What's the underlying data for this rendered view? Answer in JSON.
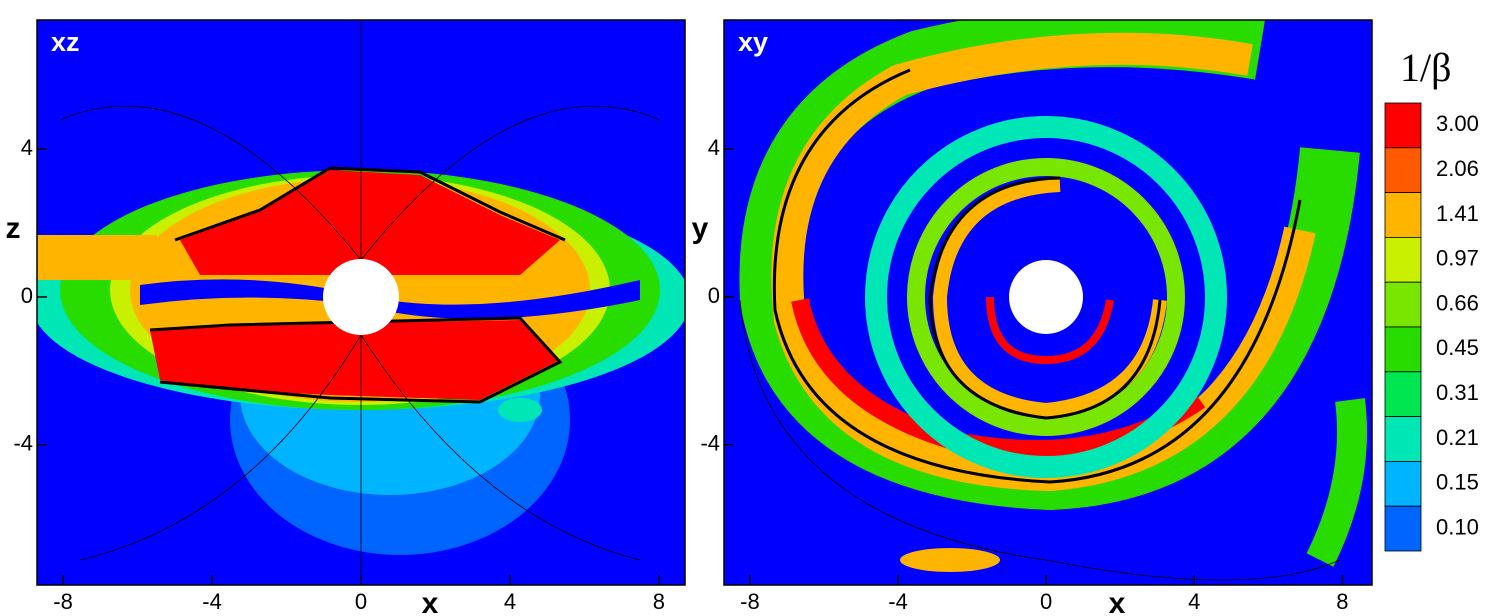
{
  "chart_data": [
    {
      "type": "contour",
      "panel_label": "xz",
      "xlabel": "x",
      "ylabel": "z",
      "xlim": [
        -8.7,
        8.7
      ],
      "ylim": [
        -7.8,
        7.5
      ],
      "xticks": [
        -8,
        -4,
        0,
        4,
        8
      ],
      "yticks": [
        -4,
        0,
        4
      ]
    },
    {
      "type": "contour",
      "panel_label": "xy",
      "xlabel": "x",
      "ylabel": "y",
      "xlim": [
        -8.7,
        8.8
      ],
      "ylim": [
        -7.8,
        7.5
      ],
      "xticks": [
        -8,
        -4,
        0,
        4,
        8
      ],
      "yticks": [
        -4,
        0,
        4
      ],
      "colorbar": {
        "title": "1/β",
        "levels": [
          {
            "value": 3,
            "label": "3.00"
          },
          2.06,
          1.41,
          0.97,
          0.66,
          0.45,
          0.31,
          0.21,
          0.15,
          {
            "value": 0.1,
            "label": "0.10"
          }
        ],
        "colors": [
          "#ff0000",
          "#ff5a00",
          "#ffb400",
          "#c8f000",
          "#78e600",
          "#28dc00",
          "#00e650",
          "#00e6b4",
          "#00b4ff",
          "#0064ff",
          "#0000ff"
        ]
      }
    }
  ]
}
